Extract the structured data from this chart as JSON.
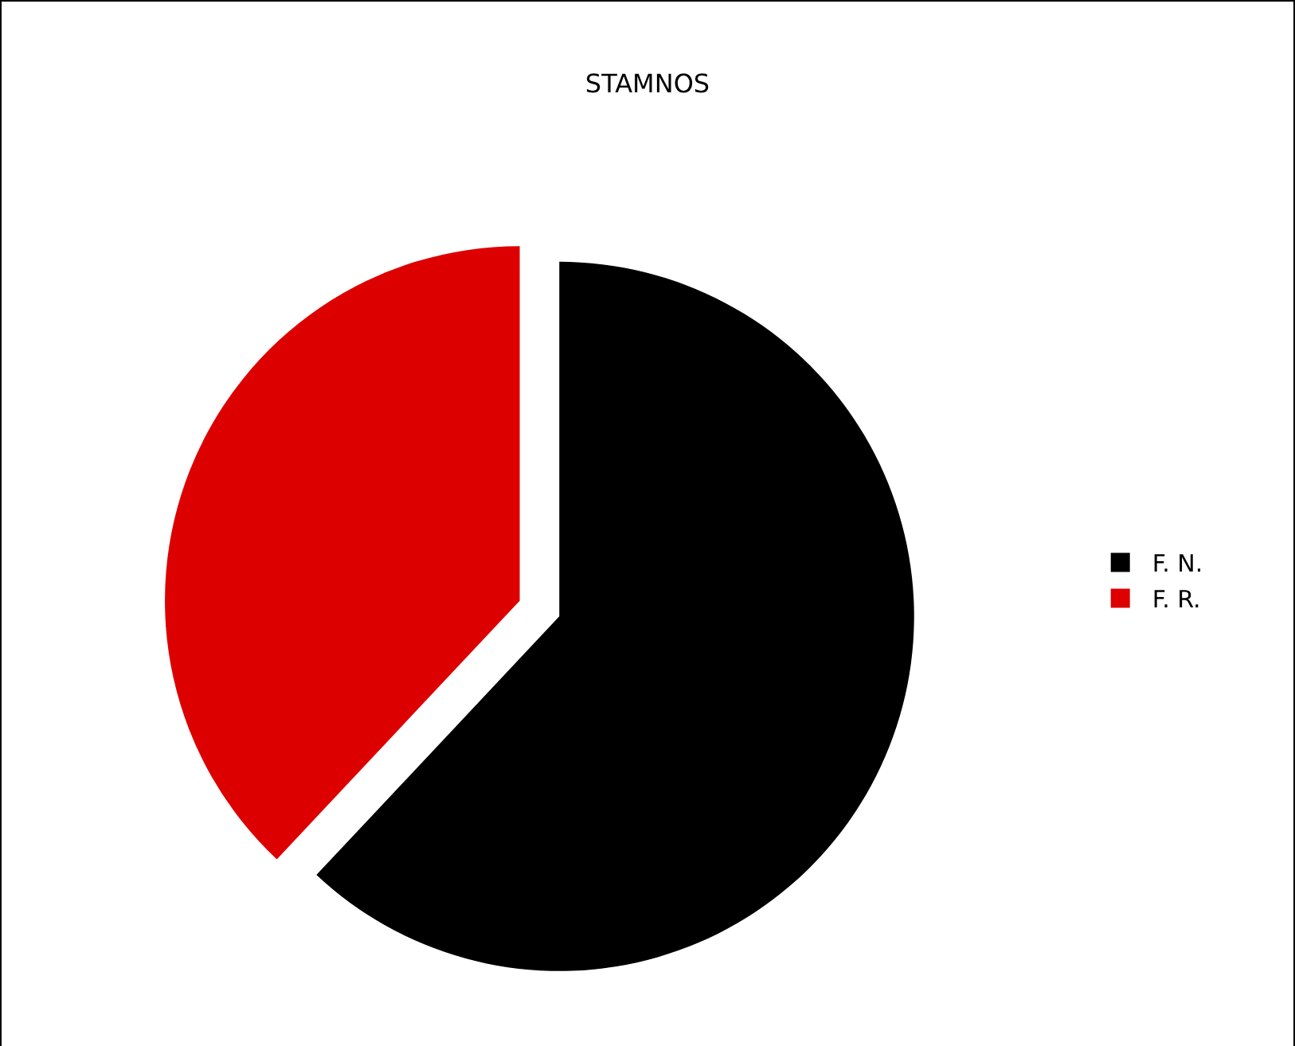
{
  "chart_data": {
    "type": "pie",
    "title": "STAMNOS",
    "categories": [
      "F. N.",
      "F. R."
    ],
    "values": [
      62,
      38
    ],
    "colors": [
      "#000000",
      "#dd0000"
    ],
    "legend": "right"
  }
}
